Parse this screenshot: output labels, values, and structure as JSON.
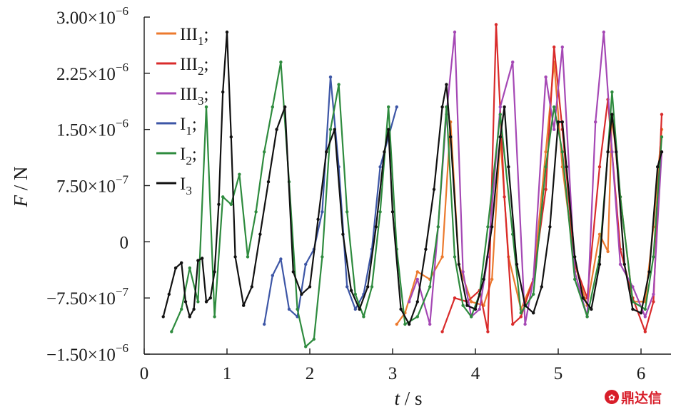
{
  "chart_data": {
    "type": "line",
    "xlabel": {
      "var": "t",
      "sep": " / ",
      "unit": "s"
    },
    "ylabel": {
      "var": "F",
      "sep": " / ",
      "unit": "N"
    },
    "xlim": [
      0,
      6.25
    ],
    "ylim": [
      -1.5e-06,
      3e-06
    ],
    "x_ticks": [
      {
        "value": 0,
        "label": "0"
      },
      {
        "value": 1,
        "label": "1"
      },
      {
        "value": 2,
        "label": "2"
      },
      {
        "value": 3,
        "label": "3"
      },
      {
        "value": 4,
        "label": "4"
      },
      {
        "value": 5,
        "label": "5"
      },
      {
        "value": 6,
        "label": "6"
      }
    ],
    "y_ticks": [
      {
        "value": -1.5e-06,
        "label": "−1.50×10",
        "exp": "−6"
      },
      {
        "value": -7.5e-07,
        "label": "−7.50×10",
        "exp": "−7"
      },
      {
        "value": 0,
        "label": "0",
        "exp": ""
      },
      {
        "value": 7.5e-07,
        "label": "7.50×10",
        "exp": "−7"
      },
      {
        "value": 1.5e-06,
        "label": "1.50×10",
        "exp": "−6"
      },
      {
        "value": 2.25e-06,
        "label": "2.25×10",
        "exp": "−6"
      },
      {
        "value": 3e-06,
        "label": "3.00×10",
        "exp": "−6"
      }
    ],
    "legend_position": "top-left",
    "grid": false,
    "series": [
      {
        "name": "III",
        "sub": "1",
        "suffix": ";",
        "color": "#ec7a2e",
        "x": [
          3.05,
          3.15,
          3.3,
          3.45,
          3.6,
          3.7,
          3.8,
          3.95,
          4.1,
          4.2,
          4.3,
          4.4,
          4.55,
          4.7,
          4.85,
          4.95,
          5.05,
          5.2,
          5.35,
          5.5,
          5.6,
          5.65,
          5.75,
          5.9,
          6.05,
          6.15,
          6.25
        ],
        "y": [
          -1.1e-06,
          -9.5e-07,
          -4e-07,
          -5e-07,
          -2e-07,
          1.6e-06,
          -3e-07,
          -8e-07,
          -8.5e-07,
          -5e-07,
          1.4e-06,
          -2e-07,
          -9e-07,
          -5e-07,
          1.2e-06,
          2.4e-06,
          1e-06,
          -3e-07,
          -8.5e-07,
          1e-07,
          -1.3e-07,
          1.7e-06,
          6e-07,
          -8e-07,
          -8e-07,
          2e-07,
          1.5e-06
        ]
      },
      {
        "name": "III",
        "sub": "2",
        "suffix": ";",
        "color": "#d92b2b",
        "x": [
          3.6,
          3.75,
          3.9,
          4.05,
          4.15,
          4.25,
          4.35,
          4.45,
          4.55,
          4.7,
          4.85,
          4.95,
          5.05,
          5.2,
          5.35,
          5.5,
          5.6,
          5.65,
          5.75,
          5.9,
          6.05,
          6.15,
          6.25
        ],
        "y": [
          -1.2e-06,
          -7.5e-07,
          -8e-07,
          -6.5e-07,
          -1.2e-06,
          2.9e-06,
          6e-07,
          -1.1e-06,
          -1e-06,
          -5e-07,
          7e-07,
          2.6e-06,
          1.5e-06,
          -3e-07,
          -7.5e-07,
          1e-06,
          1.9e-06,
          1.2e-06,
          -1e-07,
          -7.5e-07,
          -1.2e-06,
          -8e-07,
          1.7e-06
        ]
      },
      {
        "name": "III",
        "sub": "3",
        "suffix": ";",
        "color": "#a548b5",
        "x": [
          3.2,
          3.3,
          3.45,
          3.55,
          3.65,
          3.75,
          3.85,
          3.95,
          4.05,
          4.15,
          4.3,
          4.45,
          4.6,
          4.7,
          4.85,
          4.95,
          5.05,
          5.2,
          5.35,
          5.45,
          5.55,
          5.65,
          5.75,
          5.9,
          6.05,
          6.15,
          6.25
        ],
        "y": [
          -8e-07,
          -5e-07,
          -1.1e-06,
          2e-07,
          1.7e-06,
          2.8e-06,
          -4e-07,
          -1e-06,
          -9e-07,
          -2e-07,
          1.8e-06,
          2.4e-06,
          -1.1e-06,
          -5e-07,
          2.2e-06,
          1.5e-06,
          2.6e-06,
          -4e-07,
          -1e-06,
          1.6e-06,
          2.8e-06,
          1.2e-06,
          -3e-07,
          -6e-07,
          -1e-06,
          -7e-07,
          1.2e-06
        ]
      },
      {
        "name": "I",
        "sub": "1",
        "suffix": ";",
        "color": "#3d56a6",
        "x": [
          1.45,
          1.55,
          1.65,
          1.75,
          1.85,
          1.95,
          2.05,
          2.15,
          2.25,
          2.35,
          2.45,
          2.55,
          2.65,
          2.75,
          2.85,
          2.95,
          3.05
        ],
        "y": [
          -1.1e-06,
          -4.5e-07,
          -2.3e-07,
          -9e-07,
          -1e-06,
          -3e-07,
          -1e-07,
          4e-07,
          2.2e-06,
          1e-06,
          -6e-07,
          -9e-07,
          -7e-07,
          -1e-07,
          1e-06,
          1.4e-06,
          1.8e-06
        ]
      },
      {
        "name": "I",
        "sub": "2",
        "suffix": ";",
        "color": "#2e8b3e",
        "x": [
          0.33,
          0.45,
          0.55,
          0.65,
          0.75,
          0.85,
          0.95,
          1.05,
          1.15,
          1.25,
          1.35,
          1.45,
          1.55,
          1.65,
          1.75,
          1.85,
          1.95,
          2.05,
          2.15,
          2.25,
          2.35,
          2.45,
          2.55,
          2.65,
          2.75,
          2.85,
          2.95,
          3.05,
          3.15,
          3.3,
          3.45,
          3.55,
          3.65,
          3.75,
          3.85,
          3.95,
          4.05,
          4.15,
          4.3,
          4.45,
          4.55,
          4.7,
          4.85,
          4.95,
          5.05,
          5.2,
          5.35,
          5.5,
          5.6,
          5.65,
          5.75,
          5.9,
          6.05,
          6.15,
          6.25
        ],
        "y": [
          -1.2e-06,
          -9e-07,
          -3.5e-07,
          -8e-07,
          1.8e-06,
          -1e-06,
          6e-07,
          5e-07,
          9e-07,
          -2e-07,
          4e-07,
          1.2e-06,
          1.8e-06,
          2.4e-06,
          8e-07,
          -9e-07,
          -1.4e-06,
          -1.3e-06,
          -2e-07,
          1.5e-06,
          2.1e-06,
          4e-07,
          -7e-07,
          -1e-06,
          -6e-07,
          4e-07,
          1.8e-06,
          -1e-07,
          -1.1e-06,
          -1e-06,
          -6e-07,
          2e-07,
          1.8e-06,
          -2e-07,
          -8.5e-07,
          -1e-06,
          -7e-07,
          2e-07,
          1.7e-06,
          1e-07,
          -9.5e-07,
          -7e-07,
          1e-06,
          1.8e-06,
          1.2e-06,
          -5e-07,
          -1e-06,
          -2e-07,
          1.2e-06,
          2e-06,
          6e-07,
          -8e-07,
          -9e-07,
          -2e-07,
          1.4e-06
        ]
      },
      {
        "name": "I",
        "sub": "3",
        "suffix": "",
        "color": "#111111",
        "x": [
          0.23,
          0.3,
          0.38,
          0.45,
          0.5,
          0.55,
          0.6,
          0.65,
          0.7,
          0.75,
          0.8,
          0.85,
          0.9,
          0.95,
          1.0,
          1.05,
          1.1,
          1.2,
          1.3,
          1.4,
          1.5,
          1.6,
          1.7,
          1.8,
          1.9,
          2.0,
          2.1,
          2.2,
          2.3,
          2.4,
          2.5,
          2.6,
          2.7,
          2.8,
          2.9,
          2.95,
          3.0,
          3.1,
          3.2,
          3.3,
          3.4,
          3.5,
          3.6,
          3.65,
          3.7,
          3.8,
          3.9,
          4.0,
          4.1,
          4.2,
          4.3,
          4.35,
          4.4,
          4.5,
          4.6,
          4.7,
          4.8,
          4.9,
          5.0,
          5.05,
          5.1,
          5.2,
          5.3,
          5.4,
          5.5,
          5.6,
          5.65,
          5.7,
          5.8,
          5.9,
          6.0,
          6.1,
          6.2,
          6.25
        ],
        "y": [
          -1e-06,
          -7e-07,
          -3.5e-07,
          -2.8e-07,
          -8e-07,
          -1e-06,
          -9e-07,
          -2.5e-07,
          -2.2e-07,
          -8e-07,
          -7.5e-07,
          -4e-07,
          5e-07,
          2e-06,
          2.8e-06,
          1.4e-06,
          -2e-07,
          -8.5e-07,
          -6e-07,
          1e-07,
          8e-07,
          1.5e-06,
          1.8e-06,
          -4e-07,
          -7e-07,
          -6e-07,
          3e-07,
          1.2e-06,
          1.5e-06,
          1e-07,
          -6.5e-07,
          -9e-07,
          -6e-07,
          2e-07,
          1.2e-06,
          1.5e-06,
          4e-07,
          -9e-07,
          -1.1e-06,
          -8e-07,
          -1e-07,
          7e-07,
          1.8e-06,
          2.1e-06,
          1.4e-06,
          -3e-07,
          -8.5e-07,
          -9e-07,
          -5e-07,
          2e-07,
          1.4e-06,
          1.8e-06,
          1e-06,
          -3e-07,
          -8.5e-07,
          -9.5e-07,
          -6e-07,
          2e-07,
          1.6e-06,
          1.6e-06,
          1e-06,
          -2e-07,
          -7.5e-07,
          -9e-07,
          -3e-07,
          1.2e-06,
          1.7e-06,
          1.2e-06,
          -3e-07,
          -9e-07,
          -9.5e-07,
          -4e-07,
          1e-06,
          1.2e-06
        ]
      }
    ]
  },
  "watermark": {
    "text": "鼎达信",
    "icon": "seal-logo-icon",
    "color": "#d81e2a"
  }
}
